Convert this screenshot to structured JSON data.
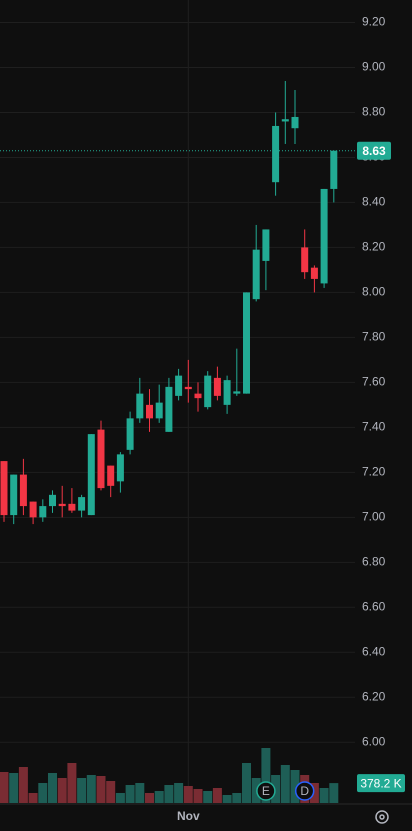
{
  "chart_data": {
    "type": "candlestick",
    "categories": [
      null,
      null,
      null,
      null,
      null,
      null,
      null,
      null,
      null,
      null,
      null,
      null,
      null,
      null,
      null,
      null,
      null,
      null,
      null,
      "Nov",
      null,
      null,
      null,
      null,
      null,
      null,
      null,
      null,
      null,
      null,
      null,
      null,
      null,
      null,
      null
    ],
    "open": [
      7.25,
      7.01,
      7.19,
      7.07,
      7.0,
      7.05,
      7.06,
      7.06,
      7.03,
      7.01,
      7.39,
      7.23,
      7.16,
      7.3,
      7.44,
      7.5,
      7.44,
      7.38,
      7.54,
      7.58,
      7.55,
      7.49,
      7.62,
      7.5,
      7.55,
      7.55,
      7.97,
      8.14,
      8.49,
      8.76,
      8.73,
      8.2,
      8.11,
      8.04,
      8.46
    ],
    "high": [
      7.25,
      7.19,
      7.26,
      7.07,
      7.08,
      7.12,
      7.14,
      7.13,
      7.1,
      7.37,
      7.43,
      7.23,
      7.29,
      7.47,
      7.62,
      7.57,
      7.59,
      7.62,
      7.66,
      7.7,
      7.6,
      7.65,
      7.67,
      7.63,
      7.75,
      8.0,
      8.3,
      8.28,
      8.8,
      8.94,
      8.9,
      8.28,
      8.12,
      8.46,
      8.63
    ],
    "low": [
      6.98,
      6.97,
      7.01,
      6.97,
      6.98,
      7.02,
      7.0,
      7.02,
      7.0,
      7.01,
      7.12,
      7.09,
      7.11,
      7.28,
      7.42,
      7.38,
      7.42,
      7.38,
      7.52,
      7.51,
      7.47,
      7.48,
      7.52,
      7.46,
      7.54,
      7.55,
      7.96,
      8.01,
      8.43,
      8.66,
      8.66,
      8.06,
      8.0,
      8.02,
      8.4
    ],
    "close": [
      7.01,
      7.19,
      7.05,
      7.0,
      7.05,
      7.1,
      7.05,
      7.03,
      7.09,
      7.37,
      7.13,
      7.14,
      7.28,
      7.44,
      7.55,
      7.44,
      7.51,
      7.58,
      7.63,
      7.57,
      7.53,
      7.63,
      7.54,
      7.61,
      7.56,
      8.0,
      8.19,
      8.28,
      8.74,
      8.77,
      8.78,
      8.09,
      8.06,
      8.46,
      8.63
    ],
    "volume": [
      589,
      570,
      684,
      190,
      380,
      570,
      475,
      760,
      475,
      532,
      513,
      418,
      190,
      342,
      380,
      190,
      228,
      342,
      380,
      323,
      266,
      228,
      285,
      152,
      190,
      760,
      475,
      1045,
      532,
      722,
      627,
      532,
      380,
      285,
      378.2
    ],
    "events": [
      null,
      null,
      null,
      null,
      null,
      null,
      null,
      null,
      null,
      null,
      null,
      null,
      null,
      null,
      null,
      null,
      null,
      null,
      null,
      null,
      null,
      null,
      null,
      null,
      null,
      null,
      null,
      "E",
      null,
      null,
      null,
      "D",
      null,
      null,
      null
    ],
    "up_color": "#22ab94",
    "down_color": "#f23645",
    "volume_up_color": "#1e5e56",
    "volume_down_color": "#7a2c33",
    "ylim": [
      5.73,
      9.3
    ],
    "yticks": [
      {
        "value": 6.0,
        "label": "6.00"
      },
      {
        "value": 6.2,
        "label": "6.20"
      },
      {
        "value": 6.4,
        "label": "6.40"
      },
      {
        "value": 6.6,
        "label": "6.60"
      },
      {
        "value": 6.8,
        "label": "6.80"
      },
      {
        "value": 7.0,
        "label": "7.00"
      },
      {
        "value": 7.2,
        "label": "7.20"
      },
      {
        "value": 7.4,
        "label": "7.40"
      },
      {
        "value": 7.6,
        "label": "7.60"
      },
      {
        "value": 7.8,
        "label": "7.80"
      },
      {
        "value": 8.0,
        "label": "8.00"
      },
      {
        "value": 8.2,
        "label": "8.20"
      },
      {
        "value": 8.4,
        "label": "8.40"
      },
      {
        "value": 8.6,
        "label": "8.60"
      },
      {
        "value": 8.8,
        "label": "8.80"
      },
      {
        "value": 9.0,
        "label": "9.00"
      },
      {
        "value": 9.2,
        "label": "9.20"
      }
    ],
    "grid": true,
    "last_price": 8.63,
    "volume_label": {
      "value": 378.2,
      "label": "378.2 K"
    }
  }
}
